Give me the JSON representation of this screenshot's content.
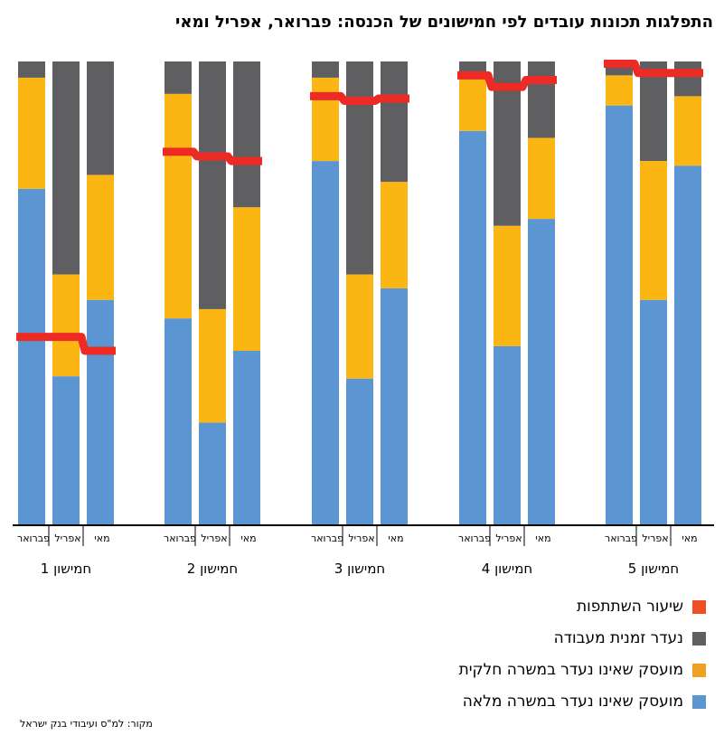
{
  "chart_data": {
    "type": "bar",
    "stacked": true,
    "title": "התפלגות תכונות עובדים לפי חמישונים של הכנסה: פברואר, אפריל ומאי",
    "groups": [
      {
        "label": "חמישון 1",
        "bars": [
          {
            "month": "פברואר",
            "full_time": 72.5,
            "part_time": 24,
            "absent": 3.5,
            "participation": 40.5
          },
          {
            "month": "אפריל",
            "full_time": 32,
            "part_time": 22,
            "absent": 46,
            "participation": 40.5
          },
          {
            "month": "מאי",
            "full_time": 48.5,
            "part_time": 27,
            "absent": 24.5,
            "participation": 37.5
          }
        ]
      },
      {
        "label": "חמישון 2",
        "bars": [
          {
            "month": "פברואר",
            "full_time": 44.5,
            "part_time": 48.5,
            "absent": 7,
            "participation": 80.5
          },
          {
            "month": "אפריל",
            "full_time": 22,
            "part_time": 24.5,
            "absent": 53.5,
            "participation": 79.5
          },
          {
            "month": "מאי",
            "full_time": 37.5,
            "part_time": 31,
            "absent": 31.5,
            "participation": 78.5
          }
        ]
      },
      {
        "label": "חמישון 3",
        "bars": [
          {
            "month": "פברואר",
            "full_time": 78.5,
            "part_time": 18,
            "absent": 3.5,
            "participation": 92.5
          },
          {
            "month": "אפריל",
            "full_time": 31.5,
            "part_time": 22.5,
            "absent": 46,
            "participation": 91.5
          },
          {
            "month": "מאי",
            "full_time": 51,
            "part_time": 23,
            "absent": 26,
            "participation": 92
          }
        ]
      },
      {
        "label": "חמישון 4",
        "bars": [
          {
            "month": "פברואר",
            "full_time": 85,
            "part_time": 11.5,
            "absent": 3.5,
            "participation": 97
          },
          {
            "month": "אפריל",
            "full_time": 38.5,
            "part_time": 26,
            "absent": 35.5,
            "participation": 94.5
          },
          {
            "month": "מאי",
            "full_time": 66,
            "part_time": 17.5,
            "absent": 16.5,
            "participation": 96
          }
        ]
      },
      {
        "label": "חמישון 5",
        "bars": [
          {
            "month": "פברואר",
            "full_time": 90.5,
            "part_time": 6.5,
            "absent": 3,
            "participation": 99.5
          },
          {
            "month": "אפריל",
            "full_time": 48.5,
            "part_time": 30,
            "absent": 21.5,
            "participation": 97.5
          },
          {
            "month": "מאי",
            "full_time": 77.5,
            "part_time": 15,
            "absent": 7.5,
            "participation": 97.5
          }
        ]
      }
    ],
    "series": [
      {
        "key": "full_time",
        "name": "מועסק שאינו נעדר במשרה מלאה",
        "color": "#5b96d2"
      },
      {
        "key": "part_time",
        "name": "מועסק שאינו נעדר במשרה חלקית",
        "color": "#fcb614"
      },
      {
        "key": "absent",
        "name": "נעדר זמנית מעבודה",
        "color": "#5f5f61"
      },
      {
        "key": "participation",
        "name": "שיעור השתתפות",
        "color": "#ee2a24",
        "kind": "line"
      }
    ],
    "ylim": [
      0,
      100
    ],
    "legend_position": "bottom-right",
    "grid": false
  },
  "legend_swatch_colors": {
    "participation": "#f04e23",
    "absent": "#5f5f61",
    "part_time": "#f0a022",
    "full_time": "#5b96d2"
  },
  "source": "מקור: למ\"ס ועיבודי בנק ישראל"
}
